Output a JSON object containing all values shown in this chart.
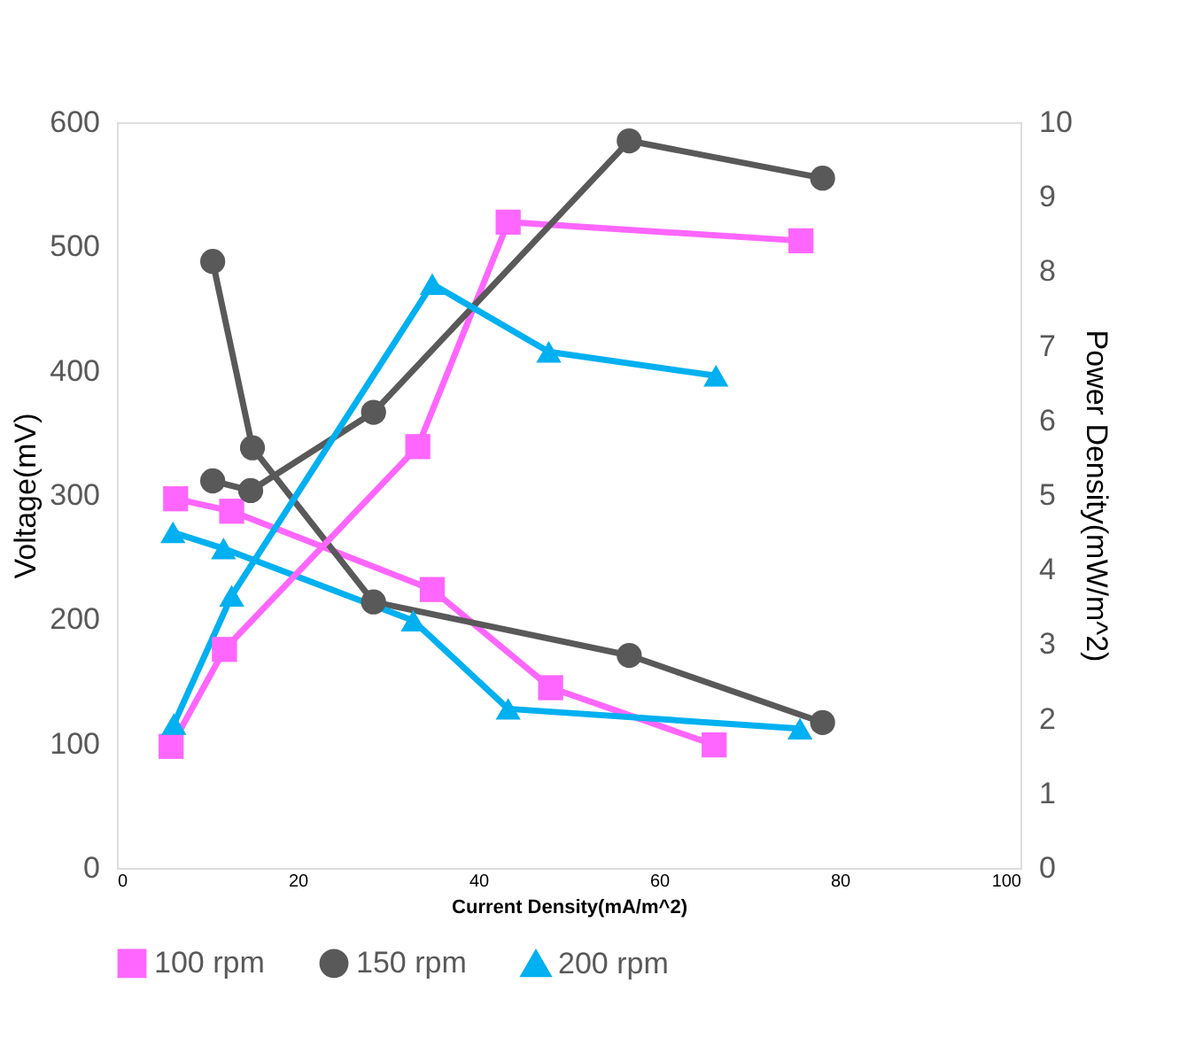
{
  "chart_data": {
    "type": "line",
    "xlabel": "Current Density(mA/m^2)",
    "ylabel": "Voltage(mV)",
    "y2label": "Power Density(mW/m^2)",
    "xlim": [
      0,
      100
    ],
    "xticks": [
      0,
      20,
      40,
      60,
      80,
      100
    ],
    "ylim": [
      0,
      600
    ],
    "yticks": [
      0,
      100,
      200,
      300,
      400,
      500,
      600
    ],
    "y2lim": [
      0,
      10
    ],
    "y2ticks": [
      0,
      1,
      2,
      3,
      4,
      5,
      6,
      7,
      8,
      9,
      10
    ],
    "grid": false,
    "legend": "bottom",
    "series": [
      {
        "name": "100 rpm",
        "color": "#ff66ff",
        "marker": "square",
        "x": [
          6.5,
          12.7,
          34.9,
          48.0,
          66.1
        ],
        "values": [
          297,
          287,
          224,
          145,
          99
        ]
      },
      {
        "name": "150 rpm",
        "color": "#595959",
        "marker": "circle",
        "x": [
          10.6,
          15.0,
          28.4,
          56.7,
          78.1
        ],
        "values": [
          488,
          338,
          214,
          171,
          117
        ]
      },
      {
        "name": "200 rpm",
        "color": "#00b0f0",
        "marker": "triangle",
        "x": [
          6.2,
          11.8,
          32.8,
          43.3,
          75.6
        ],
        "values": [
          270,
          257,
          199,
          128,
          112
        ]
      },
      {
        "color": "#ff66ff",
        "marker": "square",
        "axis": "y2",
        "x": [
          6.0,
          11.9,
          33.3,
          43.3,
          75.7
        ],
        "values": [
          1.63,
          2.93,
          5.65,
          8.66,
          8.41
        ]
      },
      {
        "color": "#595959",
        "marker": "circle",
        "axis": "y2",
        "x": [
          10.6,
          14.8,
          28.4,
          56.7,
          78.1
        ],
        "values": [
          5.19,
          5.06,
          6.11,
          9.75,
          9.25
        ]
      },
      {
        "color": "#00b0f0",
        "marker": "triangle",
        "axis": "y2",
        "x": [
          6.3,
          12.7,
          34.9,
          47.8,
          66.3
        ],
        "values": [
          1.93,
          3.65,
          7.83,
          6.92,
          6.6
        ]
      }
    ]
  }
}
